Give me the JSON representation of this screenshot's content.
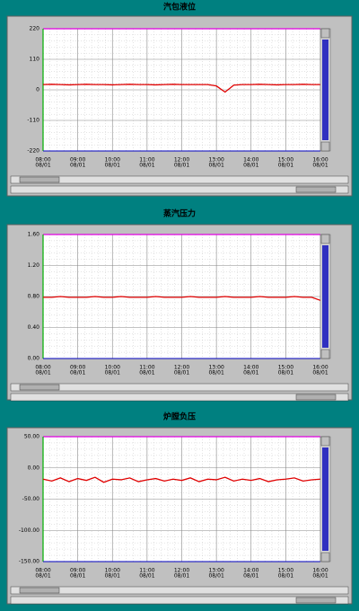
{
  "chart_data": [
    {
      "type": "line",
      "title": "汽包液位",
      "x": [
        8,
        8.25,
        8.5,
        8.75,
        9,
        9.25,
        9.5,
        9.75,
        10,
        10.25,
        10.5,
        10.75,
        11,
        11.25,
        11.5,
        11.75,
        12,
        12.25,
        12.5,
        12.75,
        13,
        13.25,
        13.5,
        13.75,
        14,
        14.25,
        14.5,
        14.75,
        15,
        15.25,
        15.5,
        15.75,
        16
      ],
      "series": [
        {
          "color": "#e00000",
          "values": [
            19,
            20,
            19,
            18,
            19,
            20,
            19,
            19,
            18,
            19,
            20,
            19,
            19,
            18,
            19,
            20,
            19,
            19,
            19,
            19,
            14,
            -8,
            17,
            19,
            19,
            20,
            19,
            18,
            19,
            19,
            20,
            19,
            19
          ]
        }
      ],
      "ylim": [
        -220,
        220
      ],
      "yticks": [
        -220,
        -110,
        0,
        110,
        220
      ],
      "xlim": [
        8,
        16
      ],
      "xticks": [
        {
          "value": 8,
          "label": "08:00",
          "date": "08/01"
        },
        {
          "value": 9,
          "label": "09:00",
          "date": "08/01"
        },
        {
          "value": 10,
          "label": "10:00",
          "date": "08/01"
        },
        {
          "value": 11,
          "label": "11:00",
          "date": "08/01"
        },
        {
          "value": 12,
          "label": "12:00",
          "date": "08/01"
        },
        {
          "value": 13,
          "label": "13:00",
          "date": "08/01"
        },
        {
          "value": 14,
          "label": "14:00",
          "date": "08/01"
        },
        {
          "value": 15,
          "label": "15:00",
          "date": "08/01"
        },
        {
          "value": 16,
          "label": "16:00",
          "date": "08/01"
        }
      ],
      "grid": true
    },
    {
      "type": "line",
      "title": "蒸汽压力",
      "x": [
        8,
        8.25,
        8.5,
        8.75,
        9,
        9.25,
        9.5,
        9.75,
        10,
        10.25,
        10.5,
        10.75,
        11,
        11.25,
        11.5,
        11.75,
        12,
        12.25,
        12.5,
        12.75,
        13,
        13.25,
        13.5,
        13.75,
        14,
        14.25,
        14.5,
        14.75,
        15,
        15.25,
        15.5,
        15.75,
        16
      ],
      "series": [
        {
          "color": "#e00000",
          "values": [
            0.79,
            0.79,
            0.8,
            0.79,
            0.79,
            0.79,
            0.8,
            0.79,
            0.79,
            0.8,
            0.79,
            0.79,
            0.79,
            0.8,
            0.79,
            0.79,
            0.79,
            0.8,
            0.79,
            0.79,
            0.79,
            0.8,
            0.79,
            0.79,
            0.79,
            0.8,
            0.79,
            0.79,
            0.79,
            0.8,
            0.79,
            0.79,
            0.75
          ]
        }
      ],
      "ylim": [
        0,
        1.6
      ],
      "yticks": [
        {
          "value": 0,
          "label": "0.00"
        },
        {
          "value": 0.4,
          "label": "0.40"
        },
        {
          "value": 0.8,
          "label": "0.80"
        },
        {
          "value": 1.2,
          "label": "1.20"
        },
        {
          "value": 1.6,
          "label": "1.60"
        }
      ],
      "xlim": [
        8,
        16
      ],
      "xticks": [
        {
          "value": 8,
          "label": "08:00",
          "date": "08/01"
        },
        {
          "value": 9,
          "label": "09:00",
          "date": "08/01"
        },
        {
          "value": 10,
          "label": "10:00",
          "date": "08/01"
        },
        {
          "value": 11,
          "label": "11:00",
          "date": "08/01"
        },
        {
          "value": 12,
          "label": "12:00",
          "date": "08/01"
        },
        {
          "value": 13,
          "label": "13:00",
          "date": "08/01"
        },
        {
          "value": 14,
          "label": "14:00",
          "date": "08/01"
        },
        {
          "value": 15,
          "label": "15:00",
          "date": "08/01"
        },
        {
          "value": 16,
          "label": "16:00",
          "date": "08/01"
        }
      ],
      "grid": true
    },
    {
      "type": "line",
      "title": "炉膛负压",
      "x": [
        8,
        8.25,
        8.5,
        8.75,
        9,
        9.25,
        9.5,
        9.75,
        10,
        10.25,
        10.5,
        10.75,
        11,
        11.25,
        11.5,
        11.75,
        12,
        12.25,
        12.5,
        12.75,
        13,
        13.25,
        13.5,
        13.75,
        14,
        14.25,
        14.5,
        14.75,
        15,
        15.25,
        15.5,
        15.75,
        16
      ],
      "series": [
        {
          "color": "#e00000",
          "values": [
            -18,
            -21,
            -16,
            -22,
            -17,
            -20,
            -15,
            -23,
            -18,
            -19,
            -16,
            -22,
            -19,
            -17,
            -21,
            -18,
            -20,
            -16,
            -22,
            -18,
            -19,
            -15,
            -21,
            -18,
            -20,
            -17,
            -22,
            -19,
            -18,
            -16,
            -21,
            -19,
            -18
          ]
        }
      ],
      "ylim": [
        -150,
        50
      ],
      "yticks": [
        {
          "value": -150,
          "label": "-150.00"
        },
        {
          "value": -100,
          "label": "-100.00"
        },
        {
          "value": -50,
          "label": "-50.00"
        },
        {
          "value": 0,
          "label": "0.00"
        },
        {
          "value": 50,
          "label": "50.00"
        }
      ],
      "xlim": [
        8,
        16
      ],
      "xticks": [
        {
          "value": 8,
          "label": "08:00",
          "date": "08/01"
        },
        {
          "value": 9,
          "label": "09:00",
          "date": "08/01"
        },
        {
          "value": 10,
          "label": "10:00",
          "date": "08/01"
        },
        {
          "value": 11,
          "label": "11:00",
          "date": "08/01"
        },
        {
          "value": 12,
          "label": "12:00",
          "date": "08/01"
        },
        {
          "value": 13,
          "label": "13:00",
          "date": "08/01"
        },
        {
          "value": 14,
          "label": "14:00",
          "date": "08/01"
        },
        {
          "value": 15,
          "label": "15:00",
          "date": "08/01"
        },
        {
          "value": 16,
          "label": "16:00",
          "date": "08/01"
        }
      ],
      "grid": true
    }
  ]
}
